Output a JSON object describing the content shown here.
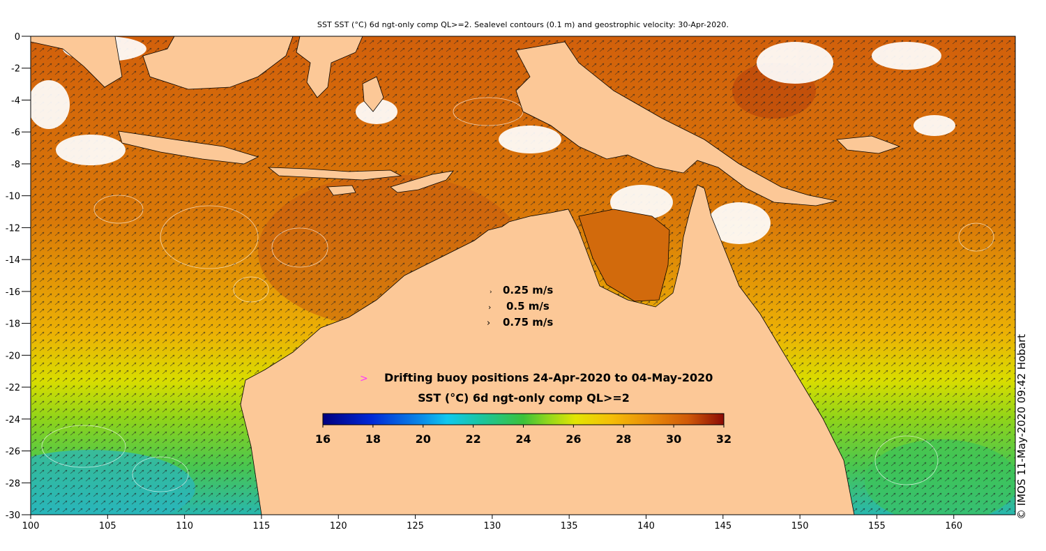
{
  "title": "SST SST (°C) 6d ngt-only comp QL>=2. Sealevel contours (0.1 m) and geostrophic velocity: 30-Apr-2020.",
  "credit": "© IMOS 11-May-2020 09:42 Hobart",
  "axes": {
    "x_ticks": [
      "100",
      "105",
      "110",
      "115",
      "120",
      "125",
      "130",
      "135",
      "140",
      "145",
      "150",
      "155",
      "160"
    ],
    "y_ticks": [
      "0",
      "-2",
      "-4",
      "-6",
      "-8",
      "-10",
      "-12",
      "-14",
      "-16",
      "-18",
      "-20",
      "-22",
      "-24",
      "-26",
      "-28",
      "-30"
    ],
    "lon_range": [
      100,
      164
    ],
    "lat_range": [
      -30,
      0
    ]
  },
  "legend": {
    "velocity_scale": [
      "0.25 m/s",
      "0.5 m/s",
      "0.75 m/s"
    ],
    "buoy_marker": ">",
    "buoy_text": "Drifting buoy positions 24-Apr-2020 to 04-May-2020",
    "colorbar_title": "SST (°C) 6d ngt-only comp QL>=2",
    "colorbar_ticks": [
      "16",
      "18",
      "20",
      "22",
      "24",
      "26",
      "28",
      "30",
      "32"
    ],
    "colorbar_range": [
      16,
      32
    ]
  },
  "colors": {
    "land": "#fcc897",
    "cloud": "#ffffff",
    "buoy_marker": "#ff33ff"
  }
}
